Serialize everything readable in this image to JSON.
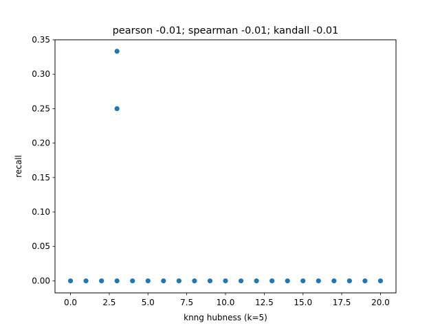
{
  "chart_data": {
    "type": "scatter",
    "title": "pearson -0.01; spearman -0.01; kandall -0.01",
    "xlabel": "knng hubness (k=5)",
    "ylabel": "recall",
    "xlim": [
      -1.0,
      21.0
    ],
    "ylim": [
      -0.0175,
      0.35
    ],
    "xticks": [
      0.0,
      2.5,
      5.0,
      7.5,
      10.0,
      12.5,
      15.0,
      17.5,
      20.0
    ],
    "xtick_labels": [
      "0.0",
      "2.5",
      "5.0",
      "7.5",
      "10.0",
      "12.5",
      "15.0",
      "17.5",
      "20.0"
    ],
    "yticks": [
      0.0,
      0.05,
      0.1,
      0.15,
      0.2,
      0.25,
      0.3,
      0.35
    ],
    "ytick_labels": [
      "0.00",
      "0.05",
      "0.10",
      "0.15",
      "0.20",
      "0.25",
      "0.30",
      "0.35"
    ],
    "grid": false,
    "marker_color": "#1f77b4",
    "points": [
      {
        "x": 0,
        "y": 0.0
      },
      {
        "x": 1,
        "y": 0.0
      },
      {
        "x": 2,
        "y": 0.0
      },
      {
        "x": 3,
        "y": 0.0
      },
      {
        "x": 3,
        "y": 0.25
      },
      {
        "x": 3,
        "y": 0.3333
      },
      {
        "x": 4,
        "y": 0.0
      },
      {
        "x": 5,
        "y": 0.0
      },
      {
        "x": 6,
        "y": 0.0
      },
      {
        "x": 7,
        "y": 0.0
      },
      {
        "x": 8,
        "y": 0.0
      },
      {
        "x": 9,
        "y": 0.0
      },
      {
        "x": 10,
        "y": 0.0
      },
      {
        "x": 11,
        "y": 0.0
      },
      {
        "x": 12,
        "y": 0.0
      },
      {
        "x": 13,
        "y": 0.0
      },
      {
        "x": 14,
        "y": 0.0
      },
      {
        "x": 15,
        "y": 0.0
      },
      {
        "x": 16,
        "y": 0.0
      },
      {
        "x": 17,
        "y": 0.0
      },
      {
        "x": 18,
        "y": 0.0
      },
      {
        "x": 19,
        "y": 0.0
      },
      {
        "x": 20,
        "y": 0.0
      }
    ]
  }
}
